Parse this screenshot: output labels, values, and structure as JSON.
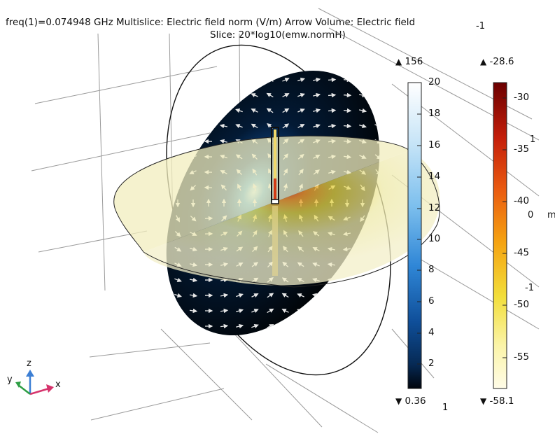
{
  "title": {
    "line1": "freq(1)=0.074948 GHz  Multislice: Electric field norm (V/m)  Arrow Volume: Electric field",
    "line2": "Slice: 20*log10(emw.normH)"
  },
  "axis_labels": {
    "top_right_minus1": "-1",
    "right_1": "1",
    "right_0": "0",
    "right_unit": "m",
    "right_minus1": "-1",
    "bottom_1": "1"
  },
  "colorbar_efield": {
    "max_label": "156",
    "min_label": "0.36",
    "tick_labels": [
      "20",
      "18",
      "16",
      "14",
      "12",
      "10",
      "8",
      "6",
      "4",
      "2"
    ],
    "colors": [
      "#ffffff",
      "#c6e4f7",
      "#7ec0ee",
      "#2f86d6",
      "#0f4f9a",
      "#062a55",
      "#00040c"
    ]
  },
  "colorbar_hfield": {
    "max_label": "-28.6",
    "min_label": "-58.1",
    "tick_labels": [
      "-30",
      "-35",
      "-40",
      "-45",
      "-50",
      "-55"
    ],
    "colors": [
      "#6b0000",
      "#c41e0a",
      "#ea5b10",
      "#f5a210",
      "#f2de3a",
      "#fbf4a8",
      "#fffce8"
    ]
  },
  "triad": {
    "x": "x",
    "y": "y",
    "z": "z",
    "x_color": "#d6336c",
    "y_color": "#2e9e44",
    "z_color": "#3d7fd4"
  },
  "scene_colors": {
    "disc_dark": "#030b18",
    "disc_glow": "#3b9be0",
    "horizontal_plane": "#efe9b4",
    "antenna_hot": "#d13a14",
    "arrow": "#e6e6e6",
    "grid": "#9a9a9a"
  }
}
